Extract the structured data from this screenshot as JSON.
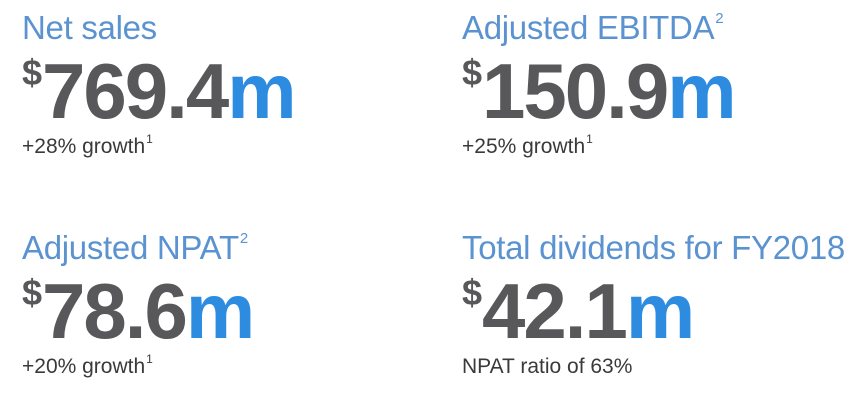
{
  "metrics": {
    "net_sales": {
      "title": "Net sales",
      "title_footnote": "",
      "currency": "$",
      "number": "769.4",
      "unit": "m",
      "note": "+28% growth",
      "note_footnote": "1"
    },
    "ebitda": {
      "title": "Adjusted EBITDA",
      "title_footnote": "2",
      "currency": "$",
      "number": "150.9",
      "unit": "m",
      "note": "+25% growth",
      "note_footnote": "1"
    },
    "npat": {
      "title": "Adjusted NPAT",
      "title_footnote": "2",
      "currency": "$",
      "number": "78.6",
      "unit": "m",
      "note": "+20% growth",
      "note_footnote": "1"
    },
    "dividends": {
      "title": "Total dividends for FY2018",
      "title_footnote": "",
      "currency": "$",
      "number": "42.1",
      "unit": "m",
      "note": "NPAT ratio of 63%",
      "note_footnote": ""
    }
  },
  "colors": {
    "title": "#5b93d0",
    "value": "#58585a",
    "unit": "#2d8ce0",
    "note": "#3a3a3a",
    "background": "#ffffff"
  }
}
